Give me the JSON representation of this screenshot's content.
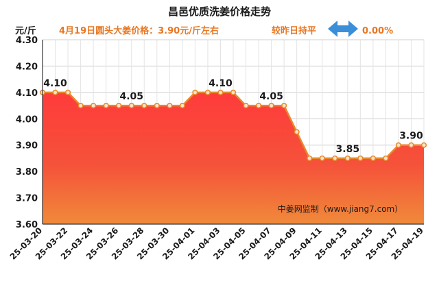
{
  "header": {
    "title": "昌邑优质洗姜价格走势",
    "unit": "元/斤",
    "price_text": "4月19日圆头大姜价格：3.90元/斤左右",
    "compare_text": "较昨日持平",
    "change_text": "0.00%"
  },
  "source": "中姜网监制（www.jiang7.com）",
  "colors": {
    "line": "#e8892c",
    "marker_fill": "#fbe3c8",
    "area_top": "#ff3b3b",
    "area_bottom": "#f08a3a",
    "accent": "#e87722",
    "arrow": "#3b8fd9"
  },
  "chart_data": {
    "type": "area",
    "title": "昌邑优质洗姜价格走势",
    "ylabel": "元/斤",
    "ylim": [
      3.6,
      4.3
    ],
    "yticks": [
      "3.60",
      "3.70",
      "3.80",
      "3.90",
      "4.00",
      "4.10",
      "4.20",
      "4.30"
    ],
    "grid": true,
    "x": [
      "25-03-20",
      "25-03-21",
      "25-03-22",
      "25-03-23",
      "25-03-24",
      "25-03-25",
      "25-03-26",
      "25-03-27",
      "25-03-28",
      "25-03-29",
      "25-03-30",
      "25-03-31",
      "25-04-01",
      "25-04-02",
      "25-04-03",
      "25-04-04",
      "25-04-05",
      "25-04-06",
      "25-04-07",
      "25-04-08",
      "25-04-09",
      "25-04-10",
      "25-04-11",
      "25-04-12",
      "25-04-13",
      "25-04-14",
      "25-04-15",
      "25-04-16",
      "25-04-17",
      "25-04-18",
      "25-04-19"
    ],
    "xtick_labels": [
      "25-03-20",
      "25-03-22",
      "25-03-24",
      "25-03-26",
      "25-03-28",
      "25-03-30",
      "25-04-01",
      "25-04-03",
      "25-04-05",
      "25-04-07",
      "25-04-09",
      "25-04-11",
      "25-04-13",
      "25-04-15",
      "25-04-17",
      "25-04-19"
    ],
    "values": [
      4.1,
      4.1,
      4.1,
      4.05,
      4.05,
      4.05,
      4.05,
      4.05,
      4.05,
      4.05,
      4.05,
      4.05,
      4.1,
      4.1,
      4.1,
      4.1,
      4.05,
      4.05,
      4.05,
      4.05,
      3.95,
      3.85,
      3.85,
      3.85,
      3.85,
      3.85,
      3.85,
      3.85,
      3.9,
      3.9,
      3.9
    ],
    "data_labels": [
      {
        "index": 1,
        "text": "4.10"
      },
      {
        "index": 7,
        "text": "4.05"
      },
      {
        "index": 14,
        "text": "4.10"
      },
      {
        "index": 18,
        "text": "4.05"
      },
      {
        "index": 24,
        "text": "3.85"
      },
      {
        "index": 29,
        "text": "3.90"
      }
    ]
  }
}
